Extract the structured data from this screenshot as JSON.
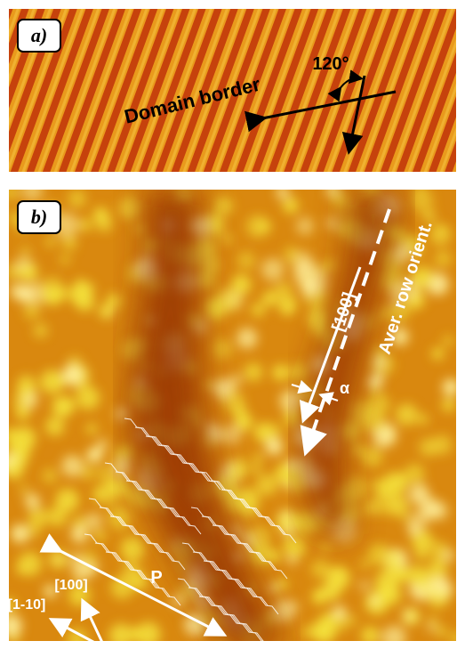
{
  "panel_a": {
    "label": "a)",
    "domain_border": "Domain border",
    "angle": "120°"
  },
  "panel_b": {
    "label": "b)",
    "row_orientation": "Aver. row orient.",
    "direction_100_upper": "[100]",
    "alpha": "α",
    "period": "P",
    "direction_100": "[100]",
    "direction_1_10": "[1-10]"
  }
}
